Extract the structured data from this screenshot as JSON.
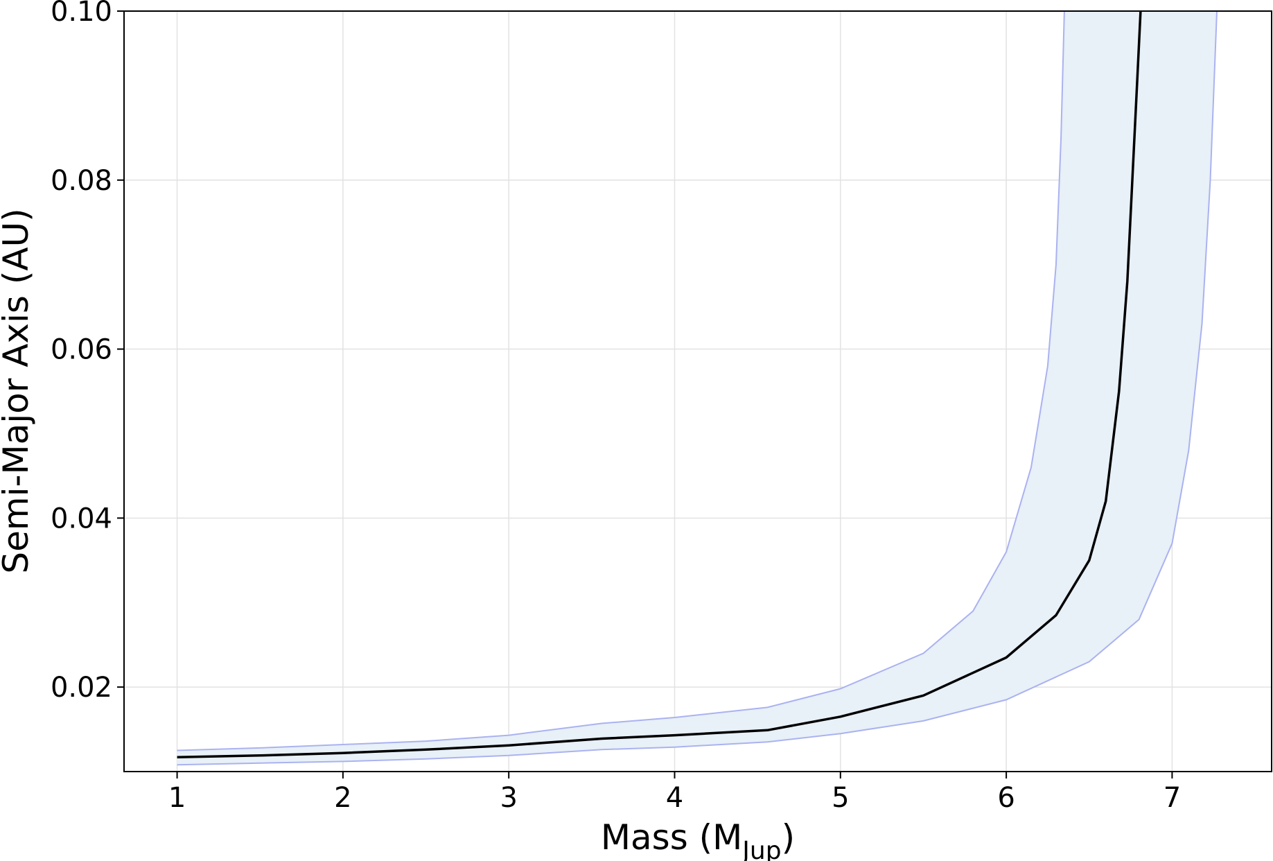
{
  "chart_data": {
    "type": "line",
    "xlabel": {
      "main": "Mass (M",
      "sub": "Jup",
      "close": ")"
    },
    "ylabel": "Semi-Major Axis (AU)",
    "xlim": [
      0.68,
      7.6
    ],
    "ylim": [
      0.01,
      0.1
    ],
    "xticks": [
      1,
      2,
      3,
      4,
      5,
      6,
      7
    ],
    "xtick_labels": [
      "1",
      "2",
      "3",
      "4",
      "5",
      "6",
      "7"
    ],
    "yticks": [
      0.02,
      0.04,
      0.06,
      0.08,
      0.1
    ],
    "ytick_labels": [
      "0.02",
      "0.04",
      "0.06",
      "0.08",
      "0.10"
    ],
    "grid": true,
    "colors": {
      "line": "#000000",
      "band_fill": "#e8f0f8",
      "band_edge": "#aab2f0",
      "grid": "#e2e2e2"
    },
    "series": [
      {
        "role": "median",
        "x": [
          1.0,
          1.5,
          2.0,
          2.5,
          3.0,
          3.56,
          4.0,
          4.56,
          5.0,
          5.5,
          6.0,
          6.3,
          6.5,
          6.6,
          6.68,
          6.73,
          6.76,
          6.79,
          6.81
        ],
        "y": [
          0.0117,
          0.0119,
          0.0122,
          0.0126,
          0.0131,
          0.0139,
          0.0143,
          0.0149,
          0.0165,
          0.019,
          0.0235,
          0.0285,
          0.035,
          0.042,
          0.055,
          0.068,
          0.08,
          0.092,
          0.1
        ]
      },
      {
        "role": "band-upper",
        "x": [
          1.0,
          1.5,
          2.0,
          2.5,
          3.0,
          3.56,
          4.0,
          4.56,
          5.0,
          5.5,
          5.8,
          6.0,
          6.15,
          6.25,
          6.3,
          6.33,
          6.35
        ],
        "y": [
          0.0125,
          0.0128,
          0.0132,
          0.0136,
          0.0143,
          0.0157,
          0.0164,
          0.0176,
          0.0198,
          0.024,
          0.029,
          0.036,
          0.046,
          0.058,
          0.07,
          0.085,
          0.1
        ]
      },
      {
        "role": "band-lower",
        "x": [
          1.0,
          1.5,
          2.0,
          2.5,
          3.0,
          3.56,
          4.0,
          4.56,
          5.0,
          5.5,
          6.0,
          6.5,
          6.8,
          7.0,
          7.1,
          7.18,
          7.23,
          7.27
        ],
        "y": [
          0.0108,
          0.011,
          0.0112,
          0.0115,
          0.0119,
          0.0126,
          0.0129,
          0.0135,
          0.0145,
          0.016,
          0.0185,
          0.023,
          0.028,
          0.037,
          0.048,
          0.063,
          0.08,
          0.1
        ]
      }
    ]
  }
}
